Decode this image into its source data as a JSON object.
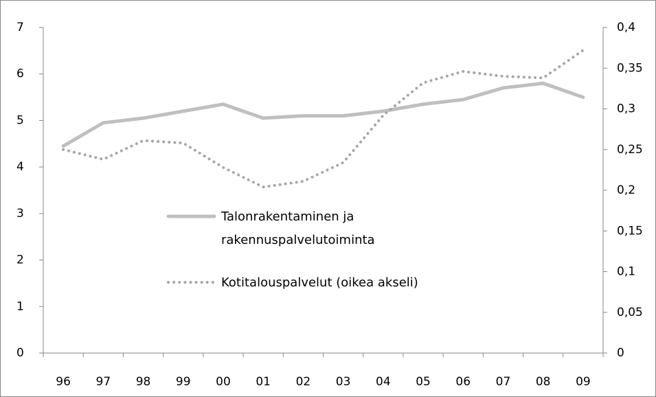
{
  "chart_data": {
    "type": "line",
    "categories": [
      "96",
      "97",
      "98",
      "99",
      "00",
      "01",
      "02",
      "03",
      "04",
      "05",
      "06",
      "07",
      "08",
      "09"
    ],
    "series": [
      {
        "name": "Talonrakentaminen ja rakennuspalvelutoiminta",
        "color": "#bfbfbf",
        "style": "solid",
        "values": [
          4.45,
          4.95,
          5.05,
          5.2,
          5.35,
          5.05,
          5.1,
          5.1,
          5.2,
          5.35,
          5.45,
          5.7,
          5.8,
          5.5
        ]
      },
      {
        "name": "Kotitalouspalvelut (oikea akseli)",
        "color": "#a6a6a6",
        "style": "dotted",
        "axis": "y2",
        "values": [
          0.25,
          0.238,
          0.261,
          0.258,
          0.228,
          0.204,
          0.211,
          0.234,
          0.292,
          0.332,
          0.346,
          0.34,
          0.338,
          0.372
        ]
      }
    ],
    "ylim": [
      0,
      7
    ],
    "yticks": [
      0,
      1,
      2,
      3,
      4,
      5,
      6,
      7
    ],
    "y2lim": [
      0,
      0.4
    ],
    "y2ticks": [
      0,
      {
        "value": 0.05,
        "label": "0,05"
      },
      {
        "value": 0.1,
        "label": "0,1"
      },
      {
        "value": 0.15,
        "label": "0,15"
      },
      {
        "value": 0.2,
        "label": "0,2"
      },
      {
        "value": 0.25,
        "label": "0,25"
      },
      {
        "value": 0.3,
        "label": "0,3"
      },
      {
        "value": 0.35,
        "label": "0,35"
      },
      {
        "value": 0.4,
        "label": "0,4"
      }
    ],
    "grid": false
  }
}
